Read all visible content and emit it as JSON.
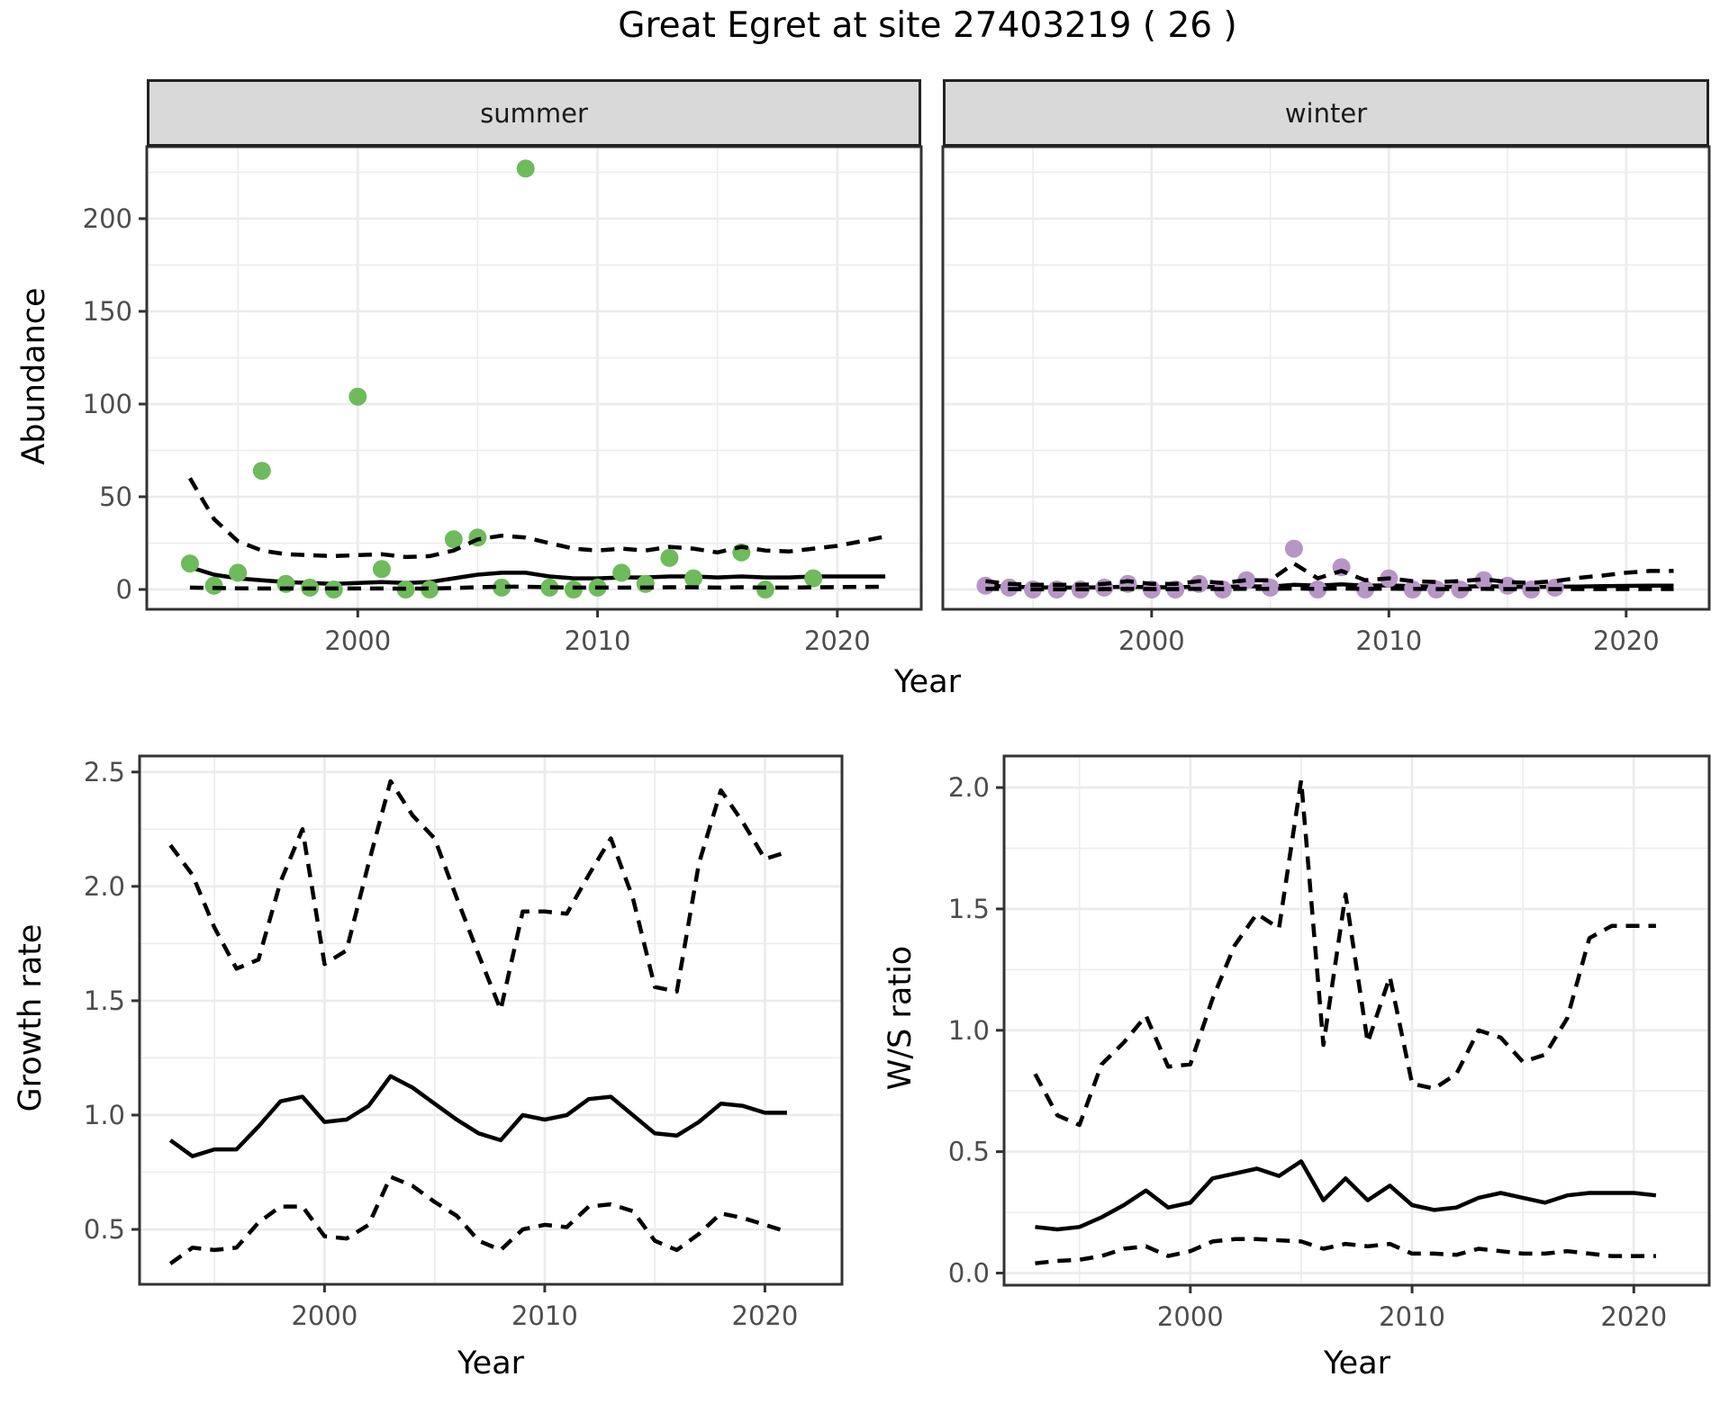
{
  "title": "Great Egret at site 27403219 ( 26 )",
  "colors": {
    "summer_points": "#6dbb5b",
    "winter_points": "#b795c7",
    "fit_lines": "#000000",
    "strip_background": "#d9d9d9",
    "panel_border": "#333333",
    "gridline": "#ebebeb",
    "tick_label": "#4d4d4d"
  },
  "chart_data": [
    {
      "id": "abundance-summer",
      "type": "scatter",
      "facet_label": "summer",
      "title": "Great Egret at site 27403219 ( 26 )",
      "xlabel": "Year",
      "ylabel": "Abundance",
      "legend": "none",
      "grid": true,
      "xlim": [
        1991.2,
        2023.5
      ],
      "ylim": [
        -10.7,
        238.8
      ],
      "x_ticks": {
        "values": [
          2000,
          2010,
          2020
        ],
        "labels": [
          "2000",
          "2010",
          "2020"
        ],
        "minor": [
          1995,
          2005,
          2015
        ]
      },
      "y_ticks": {
        "values": [
          0,
          50,
          100,
          150,
          200
        ],
        "labels": [
          "0",
          "50",
          "100",
          "150",
          "200"
        ],
        "minor": [
          25,
          75,
          125,
          175,
          225
        ]
      },
      "points": {
        "color": "#6dbb5b",
        "years": [
          1993,
          1994,
          1995,
          1996,
          1997,
          1998,
          1999,
          2000,
          2001,
          2002,
          2003,
          2004,
          2005,
          2006,
          2007,
          2008,
          2009,
          2010,
          2011,
          2012,
          2013,
          2014,
          2016,
          2017,
          2019
        ],
        "values": [
          14,
          2,
          9,
          64,
          3,
          1,
          0,
          104,
          11,
          0,
          0,
          27,
          28,
          1,
          227,
          1,
          0,
          1,
          9,
          3,
          17,
          6,
          20,
          0,
          6
        ]
      },
      "fit_mean": {
        "style": "solid",
        "years": [
          1993,
          1994,
          1995,
          1996,
          1997,
          1998,
          1999,
          2000,
          2001,
          2002,
          2003,
          2004,
          2005,
          2006,
          2007,
          2008,
          2009,
          2010,
          2011,
          2012,
          2013,
          2014,
          2015,
          2016,
          2017,
          2018,
          2019,
          2020,
          2021,
          2022
        ],
        "values": [
          12,
          8,
          6,
          5,
          4,
          3.5,
          3,
          3.5,
          4,
          3.5,
          4,
          6,
          8,
          9,
          9,
          7,
          6,
          6,
          6.5,
          6.5,
          7,
          7,
          6.5,
          7,
          6.5,
          6.5,
          7,
          7,
          7,
          7
        ]
      },
      "fit_upper": {
        "style": "dashed",
        "years": [
          1993,
          1994,
          1995,
          1996,
          1997,
          1998,
          1999,
          2000,
          2001,
          2002,
          2003,
          2004,
          2005,
          2006,
          2007,
          2008,
          2009,
          2010,
          2011,
          2012,
          2013,
          2014,
          2015,
          2016,
          2017,
          2018,
          2019,
          2020,
          2021,
          2022
        ],
        "values": [
          60,
          38,
          26,
          21,
          19,
          18.5,
          18,
          18.5,
          19,
          17.5,
          18,
          21,
          27,
          29,
          28,
          25,
          22,
          21,
          22,
          21,
          23,
          22,
          20,
          23,
          21,
          20.5,
          22,
          23.5,
          26,
          28.5
        ]
      },
      "fit_lower": {
        "style": "dashed",
        "years": [
          1993,
          1994,
          1995,
          1996,
          1997,
          1998,
          1999,
          2000,
          2001,
          2002,
          2003,
          2004,
          2005,
          2006,
          2007,
          2008,
          2009,
          2010,
          2011,
          2012,
          2013,
          2014,
          2015,
          2016,
          2017,
          2018,
          2019,
          2020,
          2021,
          2022
        ],
        "values": [
          1,
          0.8,
          0.6,
          0.5,
          0.5,
          0.5,
          0.5,
          0.5,
          0.5,
          0.4,
          0.5,
          0.8,
          1.2,
          1.5,
          1.5,
          1.2,
          1,
          1,
          1,
          1,
          1.2,
          1.2,
          1,
          1.2,
          1,
          1,
          1.2,
          1.3,
          1.4,
          1.5
        ]
      }
    },
    {
      "id": "abundance-winter",
      "type": "scatter",
      "facet_label": "winter",
      "xlabel": "Year",
      "ylabel": "Abundance",
      "legend": "none",
      "grid": true,
      "xlim": [
        1991.2,
        2023.5
      ],
      "ylim": [
        -10.7,
        238.8
      ],
      "x_ticks": {
        "values": [
          2000,
          2010,
          2020
        ],
        "labels": [
          "2000",
          "2010",
          "2020"
        ],
        "minor": [
          1995,
          2005,
          2015
        ]
      },
      "y_ticks": {
        "values": [
          0,
          50,
          100,
          150,
          200
        ],
        "labels": [
          "0",
          "50",
          "100",
          "150",
          "200"
        ],
        "minor": [
          25,
          75,
          125,
          175,
          225
        ]
      },
      "points": {
        "color": "#b795c7",
        "years": [
          1993,
          1994,
          1995,
          1996,
          1997,
          1998,
          1999,
          2000,
          2001,
          2002,
          2003,
          2004,
          2005,
          2006,
          2007,
          2008,
          2009,
          2010,
          2011,
          2012,
          2013,
          2014,
          2015,
          2016,
          2017
        ],
        "values": [
          2,
          1,
          0,
          0,
          0,
          1,
          3,
          0,
          0,
          3,
          0,
          5,
          1,
          22,
          0,
          12,
          0,
          6,
          0,
          0,
          0,
          5,
          2,
          0,
          1
        ]
      },
      "fit_mean": {
        "style": "solid",
        "years": [
          1993,
          1994,
          1995,
          1996,
          1997,
          1998,
          1999,
          2000,
          2001,
          2002,
          2003,
          2004,
          2005,
          2006,
          2007,
          2008,
          2009,
          2010,
          2011,
          2012,
          2013,
          2014,
          2015,
          2016,
          2017,
          2018,
          2019,
          2020,
          2021,
          2022
        ],
        "values": [
          2,
          1.5,
          1.2,
          1,
          1,
          1.2,
          1.5,
          1.2,
          1.2,
          1.5,
          1.3,
          1.8,
          1.5,
          2.5,
          2,
          2.8,
          2,
          2.2,
          1.8,
          1.5,
          1.5,
          1.8,
          1.5,
          1.3,
          1.5,
          1.6,
          1.8,
          1.9,
          2,
          2
        ]
      },
      "fit_upper": {
        "style": "dashed",
        "years": [
          1993,
          1994,
          1995,
          1996,
          1997,
          1998,
          1999,
          2000,
          2001,
          2002,
          2003,
          2004,
          2005,
          2006,
          2007,
          2008,
          2009,
          2010,
          2011,
          2012,
          2013,
          2014,
          2015,
          2016,
          2017,
          2018,
          2019,
          2020,
          2021,
          2022
        ],
        "values": [
          4.5,
          3,
          2.5,
          2.5,
          2.5,
          3,
          4.5,
          3,
          3,
          4.5,
          3.5,
          5,
          5,
          14,
          6,
          10,
          5,
          6,
          4.5,
          4,
          4.5,
          5.5,
          4,
          3.5,
          4.5,
          6.3,
          7.5,
          9,
          10,
          10
        ]
      },
      "fit_lower": {
        "style": "dashed",
        "years": [
          1993,
          1994,
          1995,
          1996,
          1997,
          1998,
          1999,
          2000,
          2001,
          2002,
          2003,
          2004,
          2005,
          2006,
          2007,
          2008,
          2009,
          2010,
          2011,
          2012,
          2013,
          2014,
          2015,
          2016,
          2017,
          2018,
          2019,
          2020,
          2021,
          2022
        ],
        "values": [
          0.3,
          0.2,
          0.1,
          0.1,
          0.1,
          0.2,
          0.3,
          0.2,
          0.2,
          0.3,
          0.2,
          0.3,
          0.3,
          0.5,
          0.3,
          0.5,
          0.3,
          0.4,
          0.3,
          0.2,
          0.2,
          0.3,
          0.2,
          0.2,
          0.2,
          0.2,
          0.2,
          0.2,
          0.2,
          0.2
        ]
      }
    },
    {
      "id": "growth-rate",
      "type": "line",
      "xlabel": "Year",
      "ylabel": "Growth rate",
      "legend": "none",
      "grid": true,
      "xlim": [
        1991.6,
        2023.5
      ],
      "ylim": [
        0.26,
        2.57
      ],
      "x_ticks": {
        "values": [
          2000,
          2010,
          2020
        ],
        "labels": [
          "2000",
          "2010",
          "2020"
        ],
        "minor": [
          1995,
          2005,
          2015
        ]
      },
      "y_ticks": {
        "values": [
          0.5,
          1.0,
          1.5,
          2.0,
          2.5
        ],
        "labels": [
          "0.5",
          "1.0",
          "1.5",
          "2.0",
          "2.5"
        ],
        "minor": [
          0.75,
          1.25,
          1.75,
          2.25
        ]
      },
      "fit_mean": {
        "style": "solid",
        "years": [
          1993,
          1994,
          1995,
          1996,
          1997,
          1998,
          1999,
          2000,
          2001,
          2002,
          2003,
          2004,
          2005,
          2006,
          2007,
          2008,
          2009,
          2010,
          2011,
          2012,
          2013,
          2014,
          2015,
          2016,
          2017,
          2018,
          2019,
          2020,
          2021
        ],
        "values": [
          0.89,
          0.82,
          0.85,
          0.85,
          0.95,
          1.06,
          1.08,
          0.97,
          0.98,
          1.04,
          1.17,
          1.12,
          1.05,
          0.98,
          0.92,
          0.89,
          1.0,
          0.98,
          1.0,
          1.07,
          1.08,
          1.0,
          0.92,
          0.91,
          0.97,
          1.05,
          1.04,
          1.01,
          1.01
        ]
      },
      "fit_upper": {
        "style": "dashed",
        "years": [
          1993,
          1994,
          1995,
          1996,
          1997,
          1998,
          1999,
          2000,
          2001,
          2002,
          2003,
          2004,
          2005,
          2006,
          2007,
          2008,
          2009,
          2010,
          2011,
          2012,
          2013,
          2014,
          2015,
          2016,
          2017,
          2018,
          2019,
          2020,
          2021
        ],
        "values": [
          2.18,
          2.05,
          1.82,
          1.64,
          1.68,
          2.02,
          2.25,
          1.66,
          1.72,
          2.1,
          2.46,
          2.31,
          2.21,
          1.95,
          1.7,
          1.46,
          1.89,
          1.89,
          1.88,
          2.05,
          2.21,
          1.95,
          1.56,
          1.54,
          2.1,
          2.42,
          2.28,
          2.12,
          2.15
        ]
      },
      "fit_lower": {
        "style": "dashed",
        "years": [
          1993,
          1994,
          1995,
          1996,
          1997,
          1998,
          1999,
          2000,
          2001,
          2002,
          2003,
          2004,
          2005,
          2006,
          2007,
          2008,
          2009,
          2010,
          2011,
          2012,
          2013,
          2014,
          2015,
          2016,
          2017,
          2018,
          2019,
          2020,
          2021
        ],
        "values": [
          0.35,
          0.42,
          0.41,
          0.42,
          0.53,
          0.6,
          0.6,
          0.47,
          0.46,
          0.52,
          0.73,
          0.69,
          0.62,
          0.56,
          0.45,
          0.41,
          0.5,
          0.52,
          0.51,
          0.6,
          0.61,
          0.58,
          0.45,
          0.41,
          0.48,
          0.57,
          0.55,
          0.52,
          0.49
        ]
      }
    },
    {
      "id": "ws-ratio",
      "type": "line",
      "xlabel": "Year",
      "ylabel": "W/S ratio",
      "legend": "none",
      "grid": true,
      "xlim": [
        1991.6,
        2023.4
      ],
      "ylim": [
        -0.05,
        2.13
      ],
      "x_ticks": {
        "values": [
          2000,
          2010,
          2020
        ],
        "labels": [
          "2000",
          "2010",
          "2020"
        ],
        "minor": [
          1995,
          2005,
          2015
        ]
      },
      "y_ticks": {
        "values": [
          0.0,
          0.5,
          1.0,
          1.5,
          2.0
        ],
        "labels": [
          "0.0",
          "0.5",
          "1.0",
          "1.5",
          "2.0"
        ],
        "minor": [
          0.25,
          0.75,
          1.25,
          1.75
        ]
      },
      "fit_mean": {
        "style": "solid",
        "years": [
          1993,
          1994,
          1995,
          1996,
          1997,
          1998,
          1999,
          2000,
          2001,
          2002,
          2003,
          2004,
          2005,
          2006,
          2007,
          2008,
          2009,
          2010,
          2011,
          2012,
          2013,
          2014,
          2015,
          2016,
          2017,
          2018,
          2019,
          2020,
          2021
        ],
        "values": [
          0.19,
          0.18,
          0.19,
          0.23,
          0.28,
          0.34,
          0.27,
          0.29,
          0.39,
          0.41,
          0.43,
          0.4,
          0.46,
          0.3,
          0.39,
          0.3,
          0.36,
          0.28,
          0.26,
          0.27,
          0.31,
          0.33,
          0.31,
          0.29,
          0.32,
          0.33,
          0.33,
          0.33,
          0.32
        ]
      },
      "fit_upper": {
        "style": "dashed",
        "years": [
          1993,
          1994,
          1995,
          1996,
          1997,
          1998,
          1999,
          2000,
          2001,
          2002,
          2003,
          2004,
          2005,
          2006,
          2007,
          2008,
          2009,
          2010,
          2011,
          2012,
          2013,
          2014,
          2015,
          2016,
          2017,
          2018,
          2019,
          2020,
          2021
        ],
        "values": [
          0.82,
          0.65,
          0.61,
          0.86,
          0.95,
          1.06,
          0.85,
          0.86,
          1.13,
          1.35,
          1.48,
          1.42,
          2.03,
          0.94,
          1.56,
          0.95,
          1.22,
          0.78,
          0.76,
          0.82,
          1.0,
          0.97,
          0.87,
          0.9,
          1.05,
          1.38,
          1.43,
          1.43,
          1.43
        ]
      },
      "fit_lower": {
        "style": "dashed",
        "years": [
          1993,
          1994,
          1995,
          1996,
          1997,
          1998,
          1999,
          2000,
          2001,
          2002,
          2003,
          2004,
          2005,
          2006,
          2007,
          2008,
          2009,
          2010,
          2011,
          2012,
          2013,
          2014,
          2015,
          2016,
          2017,
          2018,
          2019,
          2020,
          2021
        ],
        "values": [
          0.04,
          0.05,
          0.055,
          0.07,
          0.1,
          0.11,
          0.07,
          0.09,
          0.13,
          0.14,
          0.14,
          0.135,
          0.13,
          0.1,
          0.12,
          0.11,
          0.12,
          0.08,
          0.08,
          0.075,
          0.1,
          0.09,
          0.08,
          0.08,
          0.09,
          0.08,
          0.07,
          0.07,
          0.07
        ]
      }
    }
  ]
}
